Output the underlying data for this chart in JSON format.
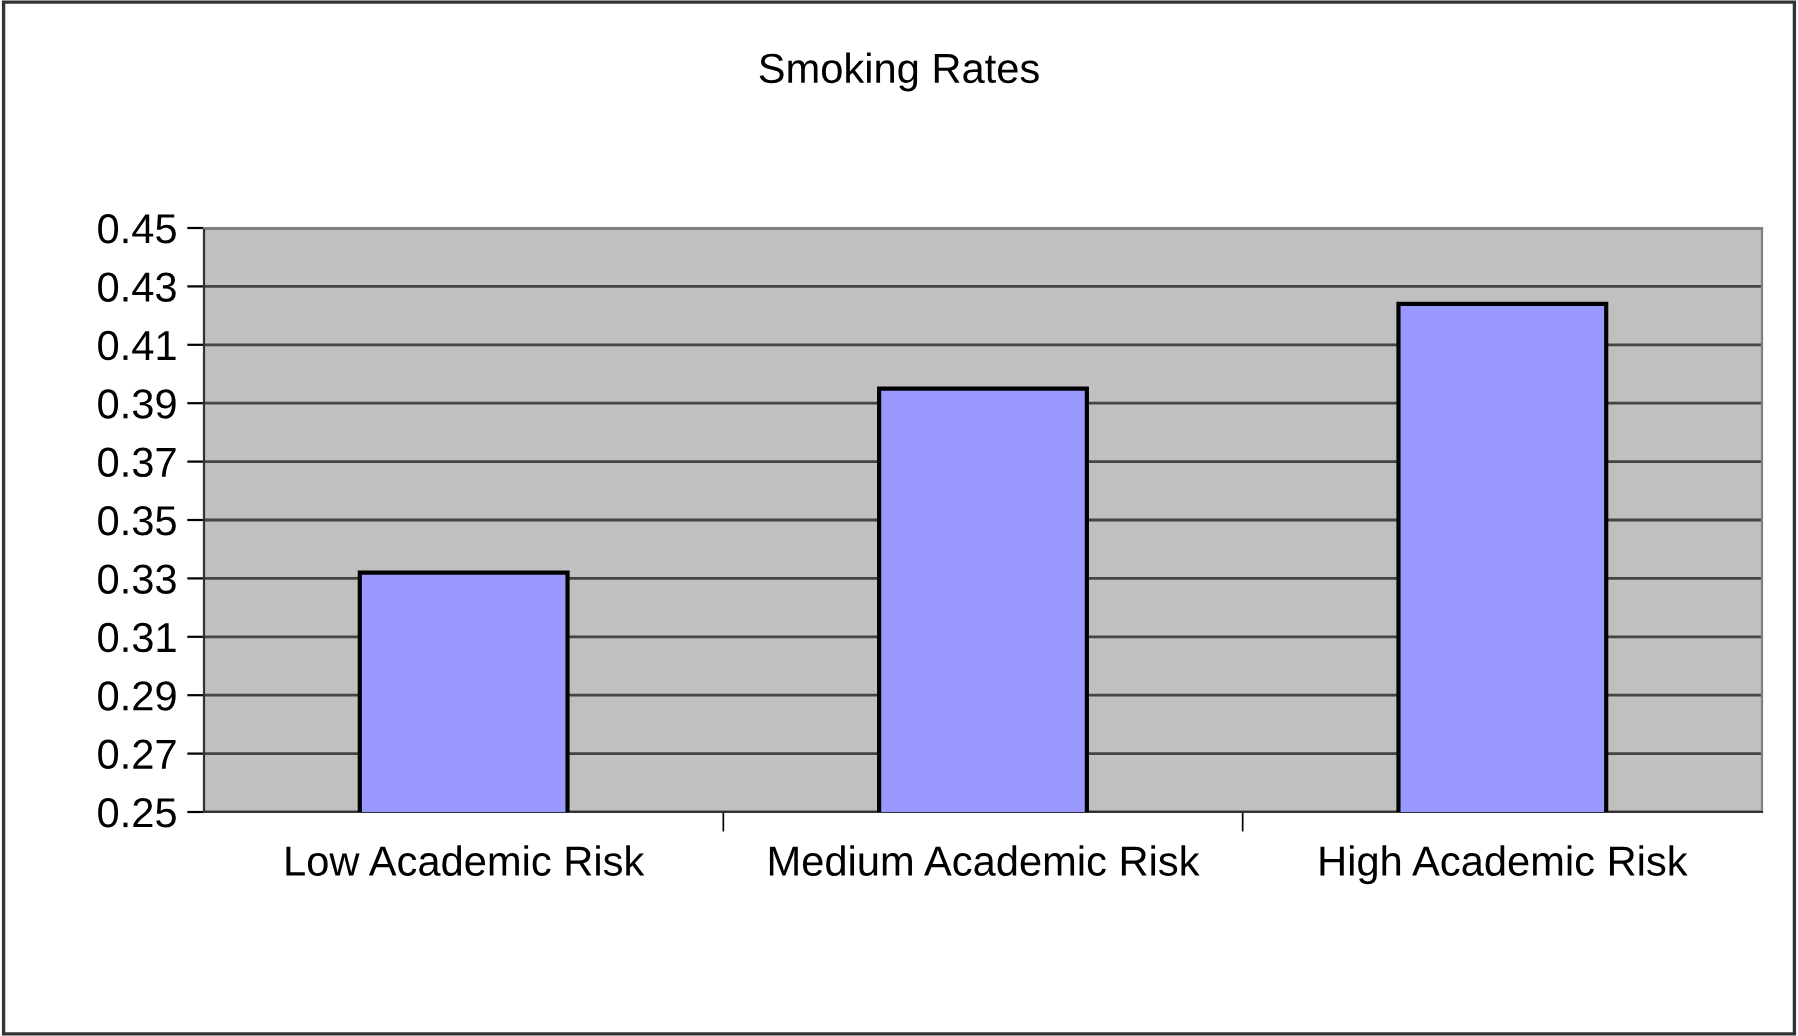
{
  "chart_data": {
    "type": "bar",
    "title": "Smoking Rates",
    "categories": [
      "Low Academic Risk",
      "Medium Academic Risk",
      "High Academic Risk"
    ],
    "values": [
      0.332,
      0.395,
      0.424
    ],
    "color": "#9999ff",
    "ylim": [
      0.25,
      0.45
    ],
    "yticks": [
      0.25,
      0.27,
      0.29,
      0.31,
      0.33,
      0.35,
      0.37,
      0.39,
      0.41,
      0.43,
      0.45
    ],
    "grid": "y"
  }
}
